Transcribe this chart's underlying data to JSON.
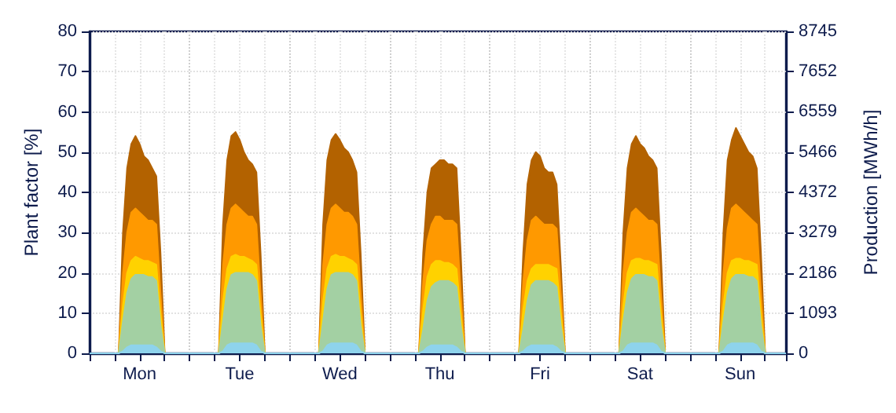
{
  "chart_data": {
    "type": "area",
    "ylabel": "Plant factor [%]",
    "y2label": "Production [MWh/h]",
    "ylim": [
      0,
      80
    ],
    "y2lim": [
      0,
      8745
    ],
    "categories": [
      null,
      null,
      null,
      null,
      null,
      null,
      null,
      null,
      null,
      null,
      null,
      null,
      "Mon",
      null,
      null,
      null,
      null,
      null,
      null,
      null,
      null,
      null,
      null,
      null,
      null,
      null,
      null,
      null,
      null,
      null,
      null,
      null,
      null,
      null,
      null,
      null,
      "Tue",
      null,
      null,
      null,
      null,
      null,
      null,
      null,
      null,
      null,
      null,
      null,
      null,
      null,
      null,
      null,
      null,
      null,
      null,
      null,
      null,
      null,
      null,
      null,
      "Wed",
      null,
      null,
      null,
      null,
      null,
      null,
      null,
      null,
      null,
      null,
      null,
      null,
      null,
      null,
      null,
      null,
      null,
      null,
      null,
      null,
      null,
      null,
      null,
      "Thu",
      null,
      null,
      null,
      null,
      null,
      null,
      null,
      null,
      null,
      null,
      null,
      null,
      null,
      null,
      null,
      null,
      null,
      null,
      null,
      null,
      null,
      null,
      null,
      "Fri",
      null,
      null,
      null,
      null,
      null,
      null,
      null,
      null,
      null,
      null,
      null,
      null,
      null,
      null,
      null,
      null,
      null,
      null,
      null,
      null,
      null,
      null,
      null,
      "Sat",
      null,
      null,
      null,
      null,
      null,
      null,
      null,
      null,
      null,
      null,
      null,
      null,
      null,
      null,
      null,
      null,
      null,
      null,
      null,
      null,
      null,
      null,
      null,
      "Sun",
      null,
      null,
      null,
      null,
      null,
      null,
      null,
      null,
      null,
      null,
      null
    ],
    "yticks": [
      0,
      10,
      20,
      30,
      40,
      50,
      60,
      70,
      80
    ],
    "y2ticks": [
      0,
      1093,
      2186,
      3279,
      4372,
      5466,
      6559,
      7652,
      8745
    ],
    "grid": true,
    "series": [
      {
        "color": "#b36200",
        "values": [
          0,
          0,
          0,
          0,
          0,
          0,
          0,
          0,
          30,
          46,
          52,
          54,
          52,
          49,
          48,
          46,
          44,
          25,
          0,
          0,
          0,
          0,
          0,
          0,
          0,
          0,
          0,
          0,
          0,
          0,
          0,
          0,
          32,
          48,
          54,
          55,
          53,
          50,
          48,
          47,
          45,
          25,
          0,
          0,
          0,
          0,
          0,
          0,
          0,
          0,
          0,
          0,
          0,
          0,
          0,
          0,
          32,
          48,
          53,
          54.5,
          53,
          51,
          50,
          48,
          45,
          25,
          0,
          0,
          0,
          0,
          0,
          0,
          0,
          0,
          0,
          0,
          0,
          0,
          0,
          0,
          25,
          40,
          46,
          47,
          48,
          48,
          47,
          47,
          46,
          25,
          0,
          0,
          0,
          0,
          0,
          0,
          0,
          0,
          0,
          0,
          0,
          0,
          0,
          0,
          25,
          42,
          48,
          50,
          49,
          46,
          45,
          45,
          42,
          22,
          0,
          0,
          0,
          0,
          0,
          0,
          0,
          0,
          0,
          0,
          0,
          0,
          0,
          0,
          30,
          46,
          52,
          54,
          52,
          51,
          49,
          48,
          46,
          25,
          0,
          0,
          0,
          0,
          0,
          0,
          0,
          0,
          0,
          0,
          0,
          0,
          0,
          0,
          30,
          48,
          53,
          56,
          54,
          52,
          50,
          49,
          46,
          25,
          0,
          0,
          0,
          0,
          0,
          0
        ]
      },
      {
        "color": "#ff9900",
        "values": [
          0,
          0,
          0,
          0,
          0,
          0,
          0,
          0,
          20,
          30,
          35,
          36,
          35,
          34,
          33,
          33,
          32,
          15,
          0,
          0,
          0,
          0,
          0,
          0,
          0,
          0,
          0,
          0,
          0,
          0,
          0,
          0,
          22,
          32,
          36,
          37,
          36,
          35,
          34,
          34,
          32,
          15,
          0,
          0,
          0,
          0,
          0,
          0,
          0,
          0,
          0,
          0,
          0,
          0,
          0,
          0,
          22,
          32,
          36,
          37,
          36,
          35,
          35,
          34,
          32,
          15,
          0,
          0,
          0,
          0,
          0,
          0,
          0,
          0,
          0,
          0,
          0,
          0,
          0,
          0,
          18,
          28,
          32,
          34,
          34,
          33,
          33,
          33,
          32,
          15,
          0,
          0,
          0,
          0,
          0,
          0,
          0,
          0,
          0,
          0,
          0,
          0,
          0,
          0,
          18,
          28,
          33,
          34,
          33,
          32,
          32,
          32,
          31,
          15,
          0,
          0,
          0,
          0,
          0,
          0,
          0,
          0,
          0,
          0,
          0,
          0,
          0,
          0,
          20,
          30,
          35,
          36,
          35,
          34,
          33,
          33,
          32,
          15,
          0,
          0,
          0,
          0,
          0,
          0,
          0,
          0,
          0,
          0,
          0,
          0,
          0,
          0,
          20,
          31,
          36,
          37,
          36,
          35,
          34,
          33,
          32,
          15,
          0,
          0,
          0,
          0,
          0,
          0
        ]
      },
      {
        "color": "#ffd200",
        "values": [
          0,
          0,
          0,
          0,
          0,
          0,
          0,
          0,
          12,
          20,
          23,
          24,
          23.5,
          23,
          23,
          22.5,
          22,
          10,
          0,
          0,
          0,
          0,
          0,
          0,
          0,
          0,
          0,
          0,
          0,
          0,
          0,
          0,
          13,
          21,
          24,
          24.5,
          24,
          24,
          23.5,
          23,
          22,
          10,
          0,
          0,
          0,
          0,
          0,
          0,
          0,
          0,
          0,
          0,
          0,
          0,
          0,
          0,
          13,
          21,
          24,
          24.5,
          24,
          24,
          23.5,
          23,
          22,
          10,
          0,
          0,
          0,
          0,
          0,
          0,
          0,
          0,
          0,
          0,
          0,
          0,
          0,
          0,
          11,
          19,
          22,
          23,
          23,
          22.5,
          22.5,
          22,
          21,
          10,
          0,
          0,
          0,
          0,
          0,
          0,
          0,
          0,
          0,
          0,
          0,
          0,
          0,
          0,
          11,
          18,
          21,
          22,
          22,
          22,
          22,
          21.5,
          21,
          10,
          0,
          0,
          0,
          0,
          0,
          0,
          0,
          0,
          0,
          0,
          0,
          0,
          0,
          0,
          12,
          20,
          23,
          23.5,
          23.5,
          23,
          23,
          22.5,
          22,
          10,
          0,
          0,
          0,
          0,
          0,
          0,
          0,
          0,
          0,
          0,
          0,
          0,
          0,
          0,
          12,
          20,
          23,
          23.5,
          23.5,
          23,
          23,
          22.5,
          22,
          10,
          0,
          0,
          0,
          0,
          0,
          0
        ]
      },
      {
        "color": "#a3d0a3",
        "values": [
          0,
          0,
          0,
          0,
          0,
          0,
          0,
          0,
          8,
          15,
          18.5,
          19.5,
          19.5,
          19.5,
          19,
          19,
          18,
          7,
          0,
          0,
          0,
          0,
          0,
          0,
          0,
          0,
          0,
          0,
          0,
          0,
          0,
          0,
          8,
          16,
          19.5,
          20,
          20,
          20,
          20,
          19.5,
          18,
          7,
          0,
          0,
          0,
          0,
          0,
          0,
          0,
          0,
          0,
          0,
          0,
          0,
          0,
          0,
          8,
          16,
          19.5,
          20,
          20,
          20,
          20,
          19.5,
          18,
          7,
          0,
          0,
          0,
          0,
          0,
          0,
          0,
          0,
          0,
          0,
          0,
          0,
          0,
          0,
          6,
          13,
          16.5,
          17.5,
          18,
          18,
          18,
          17.5,
          16.5,
          7,
          0,
          0,
          0,
          0,
          0,
          0,
          0,
          0,
          0,
          0,
          0,
          0,
          0,
          0,
          6,
          13,
          17,
          18,
          18,
          18,
          18,
          17.5,
          16.5,
          7,
          0,
          0,
          0,
          0,
          0,
          0,
          0,
          0,
          0,
          0,
          0,
          0,
          0,
          0,
          8,
          15,
          18.5,
          19.5,
          19.5,
          19.5,
          19,
          19,
          18,
          7,
          0,
          0,
          0,
          0,
          0,
          0,
          0,
          0,
          0,
          0,
          0,
          0,
          0,
          0,
          8,
          15,
          18.5,
          19.5,
          19.5,
          19.5,
          19,
          19,
          18,
          7,
          0,
          0,
          0,
          0,
          0,
          0
        ]
      },
      {
        "color": "#8ed3ec",
        "values": [
          0,
          0,
          0,
          0,
          0,
          0,
          0,
          0,
          0.5,
          1.5,
          2,
          2,
          2,
          2,
          2,
          2,
          1.5,
          0.5,
          0,
          0,
          0,
          0,
          0,
          0,
          0,
          0,
          0,
          0,
          0,
          0,
          0,
          0,
          0.5,
          2,
          2.5,
          2.5,
          2.5,
          2.5,
          2.5,
          2.5,
          2,
          0.5,
          0,
          0,
          0,
          0,
          0,
          0,
          0,
          0,
          0,
          0,
          0,
          0,
          0,
          0,
          0.5,
          2,
          2.5,
          2.5,
          2.5,
          2.5,
          2.5,
          2.5,
          2,
          0.5,
          0,
          0,
          0,
          0,
          0,
          0,
          0,
          0,
          0,
          0,
          0,
          0,
          0,
          0,
          0.5,
          1.5,
          2,
          2,
          2,
          2,
          2,
          2,
          1.5,
          0.5,
          0,
          0,
          0,
          0,
          0,
          0,
          0,
          0,
          0,
          0,
          0,
          0,
          0,
          0,
          0.5,
          1.5,
          2,
          2,
          2,
          2,
          2,
          2,
          1.5,
          0.5,
          0,
          0,
          0,
          0,
          0,
          0,
          0,
          0,
          0,
          0,
          0,
          0,
          0,
          0,
          0.5,
          2,
          2.5,
          2.5,
          2.5,
          2.5,
          2.5,
          2.5,
          2,
          0.5,
          0,
          0,
          0,
          0,
          0,
          0,
          0,
          0,
          0,
          0,
          0,
          0,
          0,
          0,
          0.5,
          2,
          2.5,
          2.5,
          2.5,
          2.5,
          2.5,
          2.5,
          2,
          0.5,
          0,
          0,
          0,
          0,
          0,
          0
        ]
      }
    ]
  }
}
